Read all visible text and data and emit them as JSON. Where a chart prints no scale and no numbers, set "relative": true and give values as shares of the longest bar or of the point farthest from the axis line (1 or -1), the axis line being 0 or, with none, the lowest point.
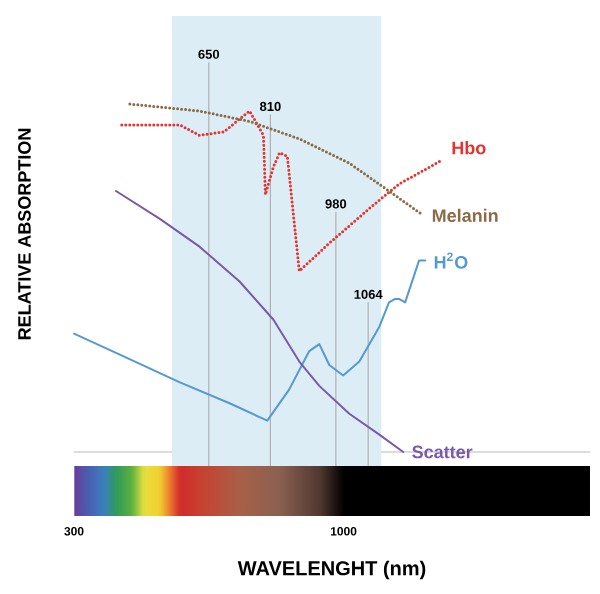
{
  "chart_data": {
    "type": "line",
    "relative": true,
    "xlabel": "WAVELENGHT (nm)",
    "ylabel": "RELATIVE ABSORPTION",
    "xlim": [
      300,
      1640
    ],
    "xticks": [
      300,
      1000
    ],
    "grid": false,
    "marker": "none",
    "bands": [
      {
        "axis": "x",
        "from": 554,
        "to": 1098,
        "color": "#dcedf6"
      }
    ],
    "ref_lines": [
      {
        "axis": "x",
        "value": 650,
        "label": "650",
        "color": "#b0b0b0"
      },
      {
        "axis": "x",
        "value": 810,
        "label": "810",
        "color": "#b0b0b0"
      },
      {
        "axis": "x",
        "value": 980,
        "label": "980",
        "color": "#b0b0b0"
      },
      {
        "axis": "x",
        "value": 1064,
        "label": "1064",
        "color": "#b0b0b0"
      }
    ],
    "series": [
      {
        "name": "Hbo",
        "color": "#e3342f",
        "line_style": "dotted",
        "x": [
          424,
          575,
          626,
          689,
          756,
          792,
          797,
          818,
          834,
          854,
          885,
          963,
          1067,
          1144,
          1258
        ],
        "values": [
          0.94,
          0.94,
          0.91,
          0.92,
          0.98,
          0.91,
          0.74,
          0.82,
          0.86,
          0.85,
          0.52,
          0.6,
          0.7,
          0.77,
          0.84
        ]
      },
      {
        "name": "Melanin",
        "color": "#8b6a45",
        "line_style": "dotted",
        "x": [
          445,
          626,
          756,
          885,
          1015,
          1118,
          1207
        ],
        "values": [
          1.0,
          0.98,
          0.95,
          0.9,
          0.83,
          0.75,
          0.68
        ]
      },
      {
        "name": "H$^{2}$O",
        "color": "#5599d2",
        "line_style": "solid",
        "x": [
          300,
          419,
          575,
          704,
          802,
          859,
          911,
          937,
          963,
          999,
          1041,
          1093,
          1118,
          1134,
          1144,
          1160,
          1196,
          1212
        ],
        "values": [
          0.34,
          0.28,
          0.2,
          0.14,
          0.09,
          0.18,
          0.29,
          0.31,
          0.25,
          0.22,
          0.26,
          0.36,
          0.43,
          0.44,
          0.44,
          0.43,
          0.55,
          0.55
        ]
      },
      {
        "name": "Scatter",
        "color": "#7a5aa8",
        "line_style": "solid",
        "x": [
          409,
          523,
          626,
          730,
          818,
          885,
          937,
          1015,
          1093,
          1155
        ],
        "values": [
          0.75,
          0.67,
          0.59,
          0.49,
          0.38,
          0.26,
          0.19,
          0.11,
          0.05,
          0.0
        ]
      }
    ]
  }
}
